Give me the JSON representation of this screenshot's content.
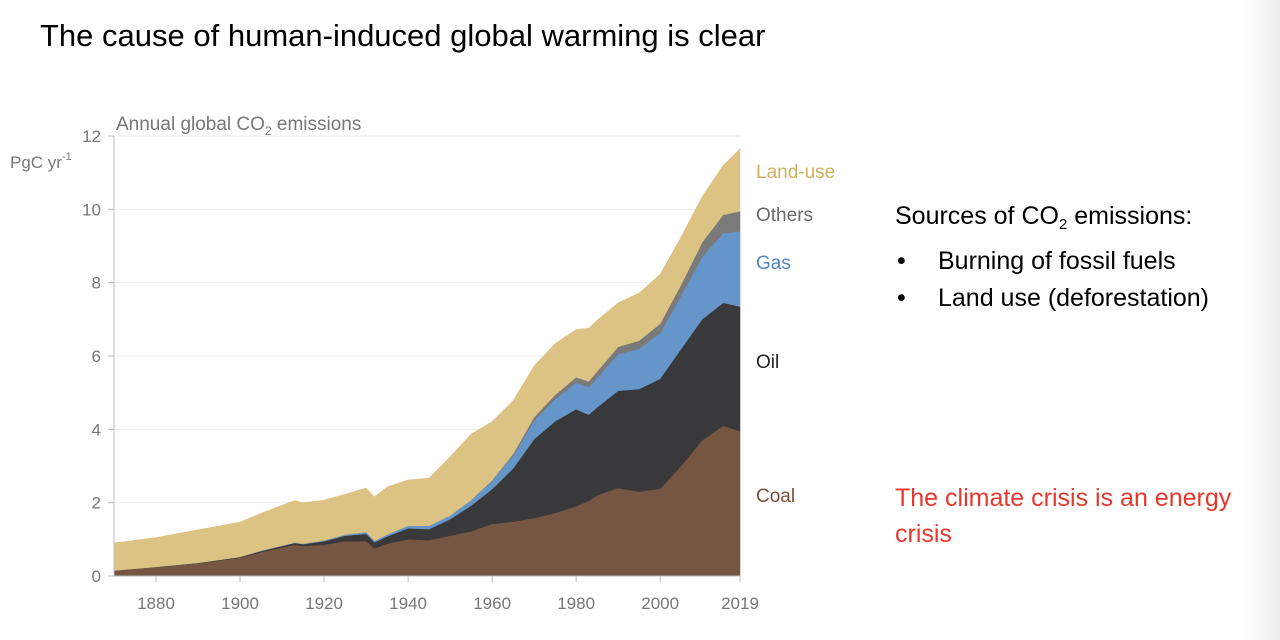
{
  "slide": {
    "title": "The cause of human-induced global warming is clear",
    "sources_heading_prefix": "Sources of CO",
    "sources_heading_sub": "2",
    "sources_heading_suffix": " emissions:",
    "bullet_glyph": "•",
    "sources": [
      "Burning of fossil fuels",
      "Land use (deforestation)"
    ],
    "conclusion": "The climate crisis is an energy crisis"
  },
  "chart_data": {
    "type": "area",
    "stacked": true,
    "title_prefix": "Annual global CO",
    "title_sub": "2",
    "title_suffix": " emissions",
    "ylabel": "PgC yr",
    "ylabel_sup": "-1",
    "xlim": [
      1870,
      2019
    ],
    "ylim": [
      0,
      12
    ],
    "yticks": [
      0,
      2,
      4,
      6,
      8,
      10,
      12
    ],
    "xticks": [
      1880,
      1900,
      1920,
      1940,
      1960,
      1980,
      2000,
      2019
    ],
    "grid": true,
    "legend_placement": "right",
    "x": [
      1870,
      1880,
      1890,
      1900,
      1905,
      1910,
      1913,
      1915,
      1920,
      1925,
      1930,
      1932,
      1935,
      1940,
      1945,
      1950,
      1955,
      1960,
      1965,
      1970,
      1975,
      1980,
      1983,
      1985,
      1990,
      1995,
      2000,
      2005,
      2010,
      2015,
      2019
    ],
    "series": [
      {
        "name": "Coal",
        "color": "#765542",
        "values": [
          0.15,
          0.25,
          0.35,
          0.5,
          0.65,
          0.78,
          0.85,
          0.82,
          0.85,
          0.95,
          0.95,
          0.75,
          0.88,
          1.0,
          0.98,
          1.1,
          1.22,
          1.42,
          1.48,
          1.58,
          1.72,
          1.9,
          2.05,
          2.2,
          2.4,
          2.3,
          2.38,
          3.0,
          3.7,
          4.1,
          3.95
        ]
      },
      {
        "name": "Oil",
        "color": "#39393b",
        "values": [
          0.0,
          0.0,
          0.01,
          0.02,
          0.03,
          0.04,
          0.05,
          0.05,
          0.1,
          0.15,
          0.2,
          0.17,
          0.2,
          0.3,
          0.3,
          0.45,
          0.7,
          0.95,
          1.45,
          2.15,
          2.5,
          2.65,
          2.35,
          2.4,
          2.65,
          2.8,
          3.0,
          3.2,
          3.3,
          3.35,
          3.4
        ]
      },
      {
        "name": "Gas",
        "color": "#6595c9",
        "values": [
          0.0,
          0.0,
          0.0,
          0.0,
          0.01,
          0.01,
          0.01,
          0.01,
          0.02,
          0.03,
          0.05,
          0.04,
          0.05,
          0.07,
          0.09,
          0.1,
          0.15,
          0.22,
          0.35,
          0.5,
          0.6,
          0.72,
          0.75,
          0.8,
          1.0,
          1.1,
          1.25,
          1.45,
          1.7,
          1.9,
          2.05
        ]
      },
      {
        "name": "Others",
        "color": "#7a7a7b",
        "values": [
          0.0,
          0.0,
          0.0,
          0.0,
          0.0,
          0.0,
          0.0,
          0.0,
          0.0,
          0.0,
          0.0,
          0.0,
          0.0,
          0.0,
          0.0,
          0.0,
          0.0,
          0.02,
          0.05,
          0.1,
          0.12,
          0.15,
          0.16,
          0.18,
          0.2,
          0.22,
          0.25,
          0.3,
          0.4,
          0.5,
          0.55
        ]
      },
      {
        "name": "Land-use",
        "color": "#dcc283",
        "values": [
          0.75,
          0.8,
          0.9,
          0.95,
          1.02,
          1.1,
          1.15,
          1.12,
          1.1,
          1.1,
          1.2,
          1.2,
          1.3,
          1.25,
          1.3,
          1.6,
          1.8,
          1.6,
          1.45,
          1.4,
          1.4,
          1.3,
          1.45,
          1.4,
          1.2,
          1.3,
          1.35,
          1.3,
          1.25,
          1.35,
          1.7
        ]
      }
    ]
  }
}
